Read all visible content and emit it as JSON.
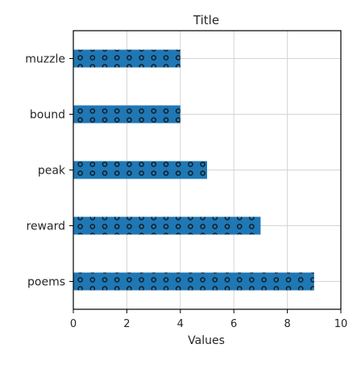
{
  "chart_data": {
    "type": "bar",
    "orientation": "horizontal",
    "title": "Title",
    "xlabel": "Values",
    "ylabel": "",
    "categories": [
      "muzzle",
      "bound",
      "peak",
      "reward",
      "poems"
    ],
    "values": [
      4,
      4,
      5,
      7,
      9
    ],
    "xlim": [
      0,
      10
    ],
    "xticks": [
      0,
      2,
      4,
      6,
      8,
      10
    ],
    "grid": true,
    "legend": "none",
    "bar_color": "#1f77b4",
    "bar_pattern": "dots"
  }
}
